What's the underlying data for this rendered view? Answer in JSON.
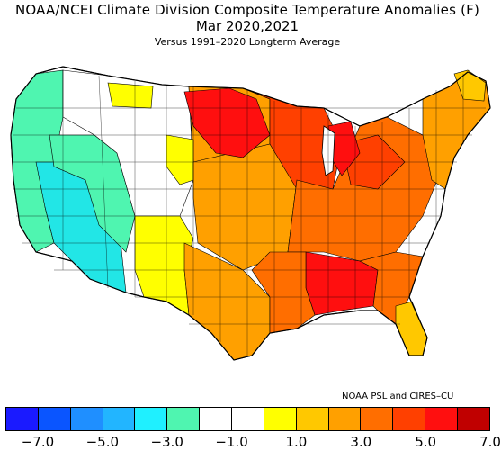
{
  "title": "NOAA/NCEI Climate Division Composite Temperature Anomalies (F)",
  "period": "Mar  2020,2021",
  "subtitle": "Versus 1991–2020 Longterm Average",
  "credit": "NOAA PSL and CIRES–CU",
  "legend": {
    "colors": [
      "#1a1aff",
      "#0a55ff",
      "#1f8fff",
      "#22b5ff",
      "#1ff0ff",
      "#4ff5b0",
      "#ffffff",
      "#ffffff",
      "#ffff00",
      "#ffc800",
      "#ffa000",
      "#ff6e00",
      "#ff4000",
      "#ff0f0f",
      "#c00000"
    ],
    "tick_labels": [
      "−7.0",
      "−5.0",
      "−3.0",
      "−1.0",
      "1.0",
      "3.0",
      "5.0",
      "7.0"
    ]
  },
  "regions": {
    "pacific_coast": "#4ff5b0",
    "interior_southwest": "#22e6e6",
    "northern_rockies": "#ffffff",
    "northern_plains_edge": "#ffff00",
    "west_texas": "#ffff00",
    "central_plains": "#ffa000",
    "upper_midwest": "#ff4000",
    "northern_lakes": "#ff0f0f",
    "ohio_valley": "#ff6e00",
    "deep_south": "#ff0f0f",
    "southeast": "#ff6e00",
    "florida": "#ffc800",
    "new_england": "#ffa000",
    "maine_north": "#ffc800"
  }
}
